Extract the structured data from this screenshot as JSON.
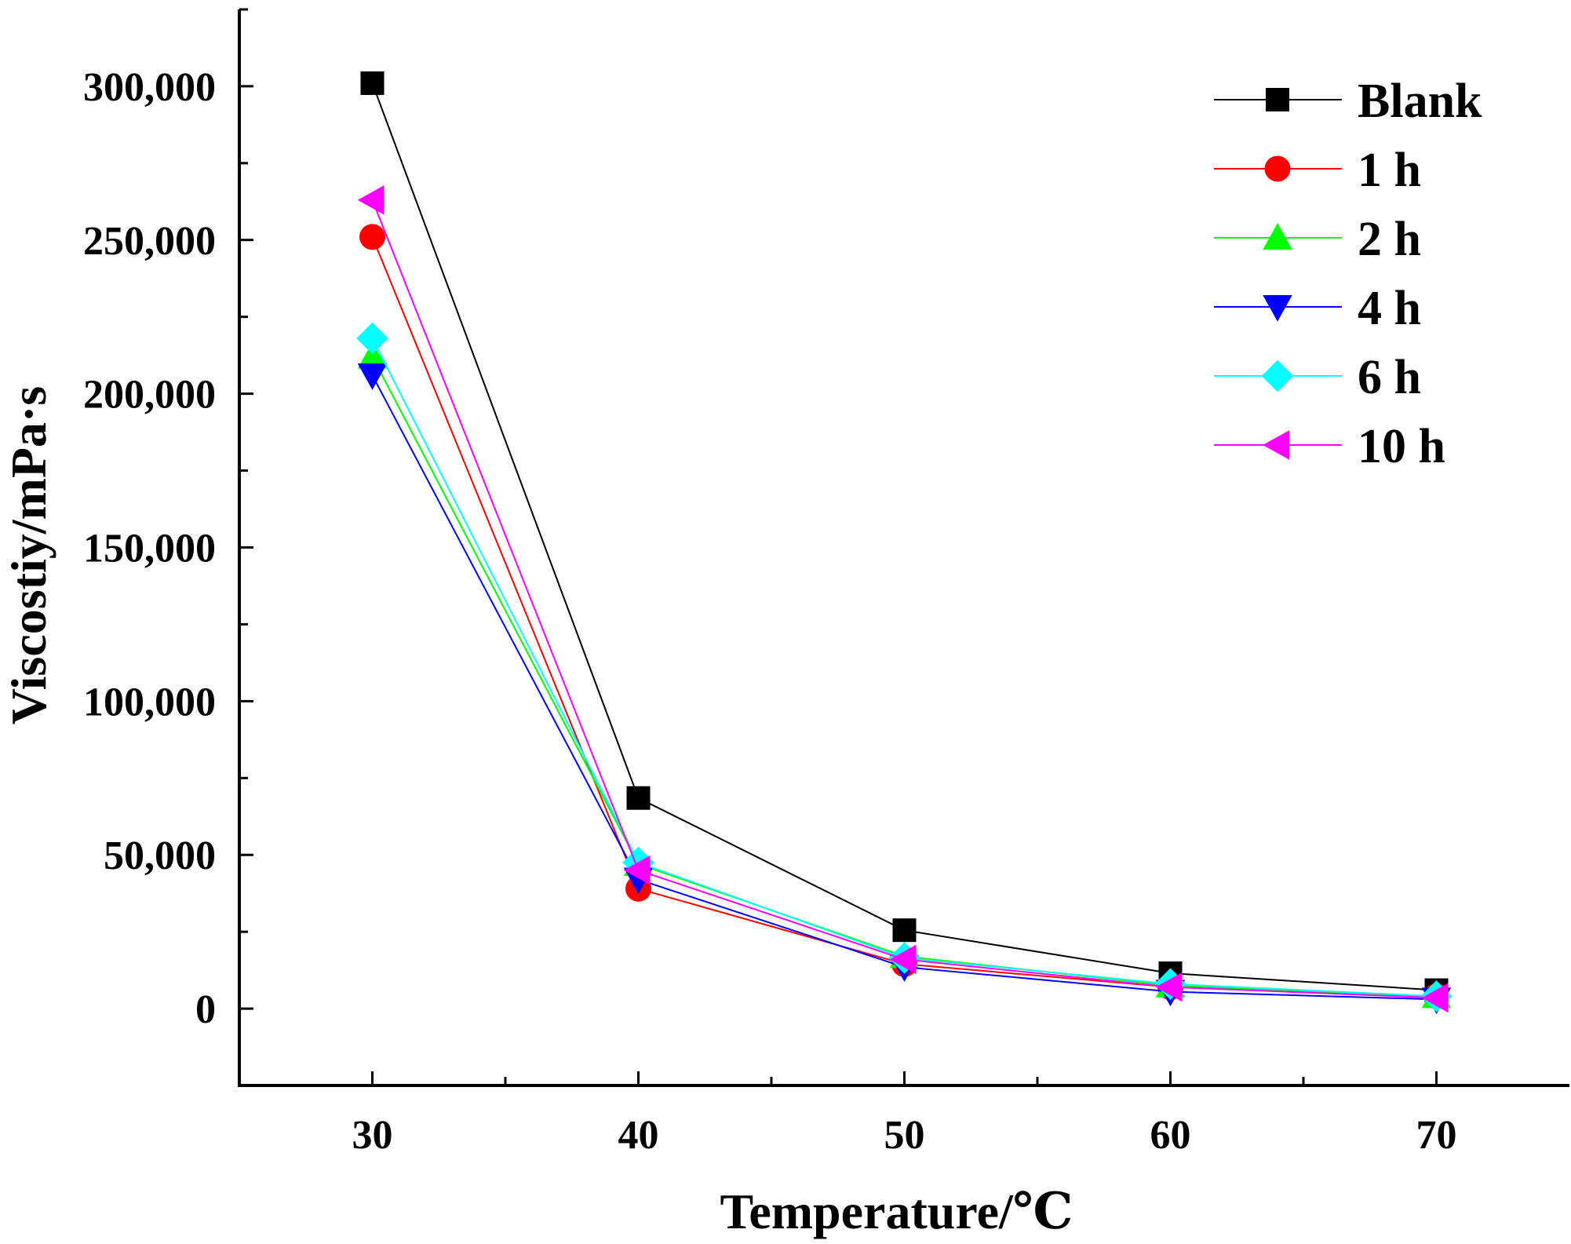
{
  "chart_data": {
    "type": "line",
    "title": "",
    "xlabel": "Temperature/℃",
    "ylabel": "Viscostiy/mPa·s",
    "x": [
      30,
      40,
      50,
      60,
      70
    ],
    "xlim": [
      25,
      75
    ],
    "ylim": [
      -25000,
      325000
    ],
    "xticks": [
      30,
      40,
      50,
      60,
      70
    ],
    "yticks": [
      0,
      50000,
      100000,
      150000,
      200000,
      250000,
      300000
    ],
    "ytick_labels": [
      "0",
      "50,000",
      "100,000",
      "150,000",
      "200,000",
      "250,000",
      "300,000"
    ],
    "legend_position": "top-right",
    "grid": false,
    "series": [
      {
        "name": "Blank",
        "color": "#000000",
        "marker": "square",
        "values": [
          301000,
          68500,
          25500,
          11500,
          6000
        ]
      },
      {
        "name": "1 h",
        "color": "#ff0000",
        "marker": "circle",
        "values": [
          251000,
          39000,
          14500,
          7000,
          4000
        ]
      },
      {
        "name": "2 h",
        "color": "#00ff00",
        "marker": "triangle-up",
        "values": [
          212000,
          47000,
          17000,
          7500,
          4000
        ]
      },
      {
        "name": "4 h",
        "color": "#0000ff",
        "marker": "triangle-down",
        "values": [
          206000,
          42000,
          13500,
          5500,
          3000
        ]
      },
      {
        "name": "6 h",
        "color": "#00ffff",
        "marker": "diamond",
        "values": [
          218000,
          47500,
          16500,
          8000,
          4000
        ]
      },
      {
        "name": "10 h",
        "color": "#ff00ff",
        "marker": "triangle-left",
        "values": [
          263000,
          45000,
          16000,
          7000,
          3500
        ]
      }
    ]
  }
}
